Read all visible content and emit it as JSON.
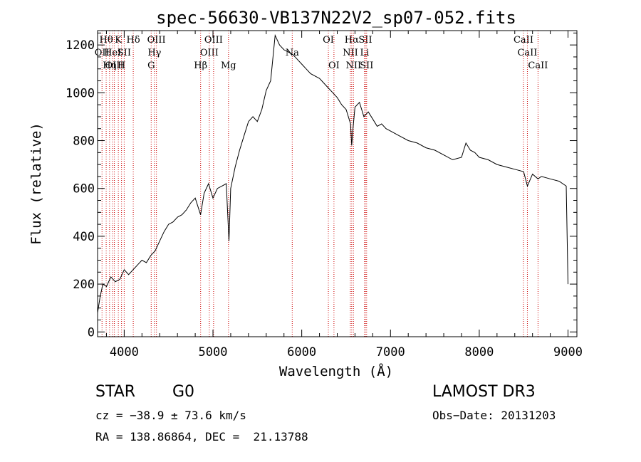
{
  "chart_data": {
    "type": "line",
    "title": "spec-56630-VB137N22V2_sp07-052.fits",
    "xlabel": "Wavelength (Å)",
    "ylabel": "Flux (relative)",
    "xlim": [
      3700,
      9100
    ],
    "ylim": [
      -20,
      1260
    ],
    "xticks": [
      4000,
      5000,
      6000,
      7000,
      8000,
      9000
    ],
    "yticks": [
      0,
      200,
      400,
      600,
      800,
      1000,
      1200
    ],
    "spectrum_color": "#000000",
    "line_marker_color": "#cc0000",
    "spectrum": {
      "x": [
        3700,
        3730,
        3760,
        3800,
        3850,
        3900,
        3950,
        4000,
        4050,
        4100,
        4150,
        4200,
        4250,
        4300,
        4350,
        4400,
        4450,
        4500,
        4550,
        4600,
        4650,
        4700,
        4750,
        4800,
        4860,
        4900,
        4950,
        5000,
        5050,
        5100,
        5150,
        5180,
        5200,
        5250,
        5300,
        5350,
        5400,
        5450,
        5500,
        5550,
        5600,
        5650,
        5700,
        5750,
        5800,
        5850,
        5900,
        5950,
        6000,
        6050,
        6100,
        6150,
        6200,
        6250,
        6300,
        6350,
        6400,
        6450,
        6500,
        6550,
        6563,
        6580,
        6600,
        6650,
        6700,
        6750,
        6800,
        6850,
        6900,
        6950,
        7000,
        7100,
        7200,
        7300,
        7400,
        7500,
        7600,
        7700,
        7800,
        7850,
        7900,
        7950,
        8000,
        8100,
        8200,
        8300,
        8400,
        8500,
        8542,
        8600,
        8662,
        8700,
        8800,
        8900,
        8980,
        9000
      ],
      "flux": [
        80,
        150,
        200,
        190,
        230,
        210,
        220,
        260,
        240,
        260,
        280,
        300,
        290,
        320,
        340,
        380,
        420,
        450,
        460,
        480,
        490,
        510,
        540,
        560,
        490,
        580,
        620,
        560,
        600,
        610,
        620,
        380,
        600,
        690,
        760,
        820,
        880,
        900,
        880,
        930,
        1010,
        1050,
        1240,
        1200,
        1180,
        1170,
        1160,
        1140,
        1120,
        1100,
        1080,
        1070,
        1060,
        1040,
        1020,
        1000,
        980,
        950,
        930,
        870,
        780,
        860,
        940,
        960,
        900,
        920,
        890,
        860,
        870,
        850,
        840,
        820,
        800,
        790,
        770,
        760,
        740,
        720,
        730,
        790,
        760,
        750,
        730,
        720,
        700,
        690,
        680,
        670,
        610,
        660,
        640,
        650,
        640,
        630,
        610,
        200
      ]
    },
    "line_markers": [
      {
        "wavelength": 3750,
        "label": "OII",
        "row": 1
      },
      {
        "wavelength": 3797,
        "label": "Hθ",
        "row": 0
      },
      {
        "wavelength": 3835,
        "label": "Hη",
        "row": 2
      },
      {
        "wavelength": 3870,
        "label": "HeI",
        "row": 1
      },
      {
        "wavelength": 3889,
        "label": "OIII",
        "row": 2
      },
      {
        "wavelength": 3934,
        "label": "K",
        "row": 0
      },
      {
        "wavelength": 3970,
        "label": "H",
        "row": 2
      },
      {
        "wavelength": 4000,
        "label": "SII",
        "row": 1
      },
      {
        "wavelength": 4102,
        "label": "Hδ",
        "row": 0
      },
      {
        "wavelength": 4304,
        "label": "G",
        "row": 2
      },
      {
        "wavelength": 4341,
        "label": "Hγ",
        "row": 1
      },
      {
        "wavelength": 4363,
        "label": "OIII",
        "row": 0
      },
      {
        "wavelength": 4861,
        "label": "Hβ",
        "row": 2
      },
      {
        "wavelength": 4959,
        "label": "OIII",
        "row": 1
      },
      {
        "wavelength": 5007,
        "label": "OIII",
        "row": 0
      },
      {
        "wavelength": 5175,
        "label": "Mg",
        "row": 2
      },
      {
        "wavelength": 5893,
        "label": "Na",
        "row": 1
      },
      {
        "wavelength": 6300,
        "label": "OI",
        "row": 0
      },
      {
        "wavelength": 6363,
        "label": "OI",
        "row": 2
      },
      {
        "wavelength": 6548,
        "label": "NII",
        "row": 1
      },
      {
        "wavelength": 6563,
        "label": "Hα",
        "row": 0
      },
      {
        "wavelength": 6583,
        "label": "NII",
        "row": 2
      },
      {
        "wavelength": 6708,
        "label": "Li",
        "row": 1
      },
      {
        "wavelength": 6717,
        "label": "SII",
        "row": 0
      },
      {
        "wavelength": 6731,
        "label": "SII",
        "row": 2
      },
      {
        "wavelength": 8498,
        "label": "CaII",
        "row": 0
      },
      {
        "wavelength": 8542,
        "label": "CaII",
        "row": 1
      },
      {
        "wavelength": 8662,
        "label": "CaII",
        "row": 2
      }
    ]
  },
  "info": {
    "class": "STAR",
    "subclass": "G0",
    "survey": "LAMOST DR3",
    "cz": "cz = −38.9 ± 73.6 km/s",
    "obs_date": "Obs−Date: 20131203",
    "coords": "RA = 138.86864, DEC =  21.13788"
  }
}
